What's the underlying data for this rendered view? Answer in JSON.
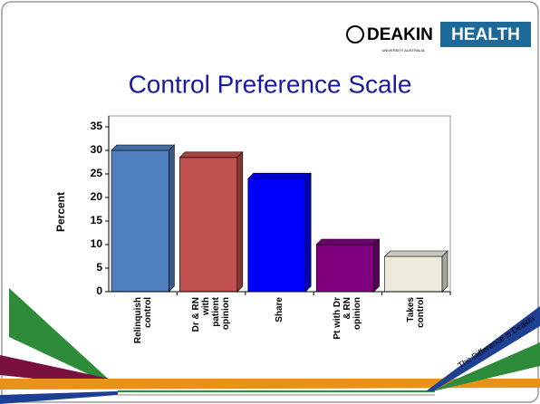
{
  "logo": {
    "name": "DEAKIN",
    "tag": "HEALTH",
    "sub": "UNIVERSITY AUSTRALIA"
  },
  "tagline": "The Difference is Deakin",
  "chart_data": {
    "type": "bar",
    "title": "Control Preference Scale",
    "y_label": "Percent",
    "categories": [
      "Relinquish control",
      "Dr & RN with patient opinion",
      "Share",
      "Pt with Dr & RN opinion",
      "Takes control"
    ],
    "values": [
      30,
      28.5,
      24,
      10,
      7.5
    ],
    "colors": [
      "#4f7fbf",
      "#c0504d",
      "#0000ff",
      "#800080",
      "#eeeadc"
    ],
    "ylim": [
      0,
      35
    ],
    "yticks": [
      0,
      5,
      10,
      15,
      20,
      25,
      30,
      35
    ],
    "grid": false
  }
}
